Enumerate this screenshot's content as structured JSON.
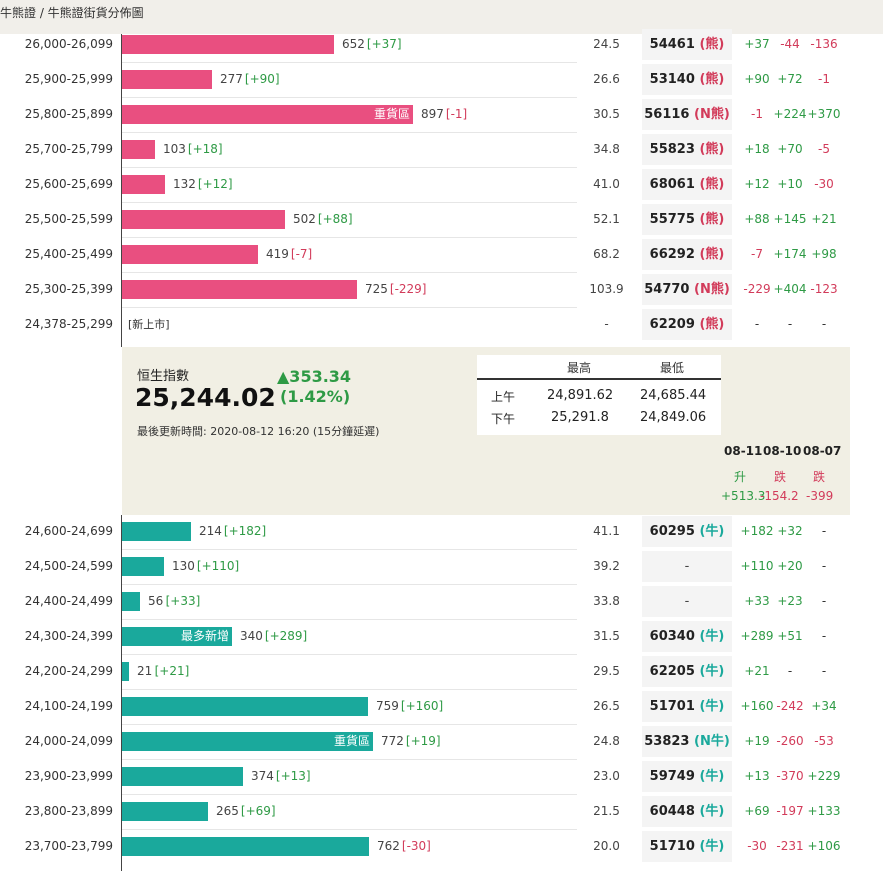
{
  "breadcrumb": "牛熊證 / 牛熊證街貨分佈圖",
  "bear_rows": [
    {
      "range": "26,000-26,099",
      "qty": "652",
      "chg": "[+37]",
      "chg_sign": "pos",
      "bar_value": 652,
      "bar_label": "",
      "ratio": "24.5",
      "code": "54461",
      "tag": "(熊)",
      "d1": "+37",
      "d1s": "pos",
      "d2": "-44",
      "d2s": "neg",
      "d3": "-136",
      "d3s": "neg"
    },
    {
      "range": "25,900-25,999",
      "qty": "277",
      "chg": "[+90]",
      "chg_sign": "pos",
      "bar_value": 277,
      "bar_label": "",
      "ratio": "26.6",
      "code": "53140",
      "tag": "(熊)",
      "d1": "+90",
      "d1s": "pos",
      "d2": "+72",
      "d2s": "pos",
      "d3": "-1",
      "d3s": "neg"
    },
    {
      "range": "25,800-25,899",
      "qty": "897",
      "chg": "[-1]",
      "chg_sign": "neg",
      "bar_value": 897,
      "bar_label": "重貨區",
      "ratio": "30.5",
      "code": "56116",
      "tag": "(N熊)",
      "d1": "-1",
      "d1s": "neg",
      "d2": "+224",
      "d2s": "pos",
      "d3": "+370",
      "d3s": "pos"
    },
    {
      "range": "25,700-25,799",
      "qty": "103",
      "chg": "[+18]",
      "chg_sign": "pos",
      "bar_value": 103,
      "bar_label": "",
      "ratio": "34.8",
      "code": "55823",
      "tag": "(熊)",
      "d1": "+18",
      "d1s": "pos",
      "d2": "+70",
      "d2s": "pos",
      "d3": "-5",
      "d3s": "neg"
    },
    {
      "range": "25,600-25,699",
      "qty": "132",
      "chg": "[+12]",
      "chg_sign": "pos",
      "bar_value": 132,
      "bar_label": "",
      "ratio": "41.0",
      "code": "68061",
      "tag": "(熊)",
      "d1": "+12",
      "d1s": "pos",
      "d2": "+10",
      "d2s": "pos",
      "d3": "-30",
      "d3s": "neg"
    },
    {
      "range": "25,500-25,599",
      "qty": "502",
      "chg": "[+88]",
      "chg_sign": "pos",
      "bar_value": 502,
      "bar_label": "",
      "ratio": "52.1",
      "code": "55775",
      "tag": "(熊)",
      "d1": "+88",
      "d1s": "pos",
      "d2": "+145",
      "d2s": "pos",
      "d3": "+21",
      "d3s": "pos"
    },
    {
      "range": "25,400-25,499",
      "qty": "419",
      "chg": "[-7]",
      "chg_sign": "neg",
      "bar_value": 419,
      "bar_label": "",
      "ratio": "68.2",
      "code": "66292",
      "tag": "(熊)",
      "d1": "-7",
      "d1s": "neg",
      "d2": "+174",
      "d2s": "pos",
      "d3": "+98",
      "d3s": "pos"
    },
    {
      "range": "25,300-25,399",
      "qty": "725",
      "chg": "[-229]",
      "chg_sign": "neg",
      "bar_value": 725,
      "bar_label": "",
      "ratio": "103.9",
      "code": "54770",
      "tag": "(N熊)",
      "d1": "-229",
      "d1s": "neg",
      "d2": "+404",
      "d2s": "pos",
      "d3": "-123",
      "d3s": "neg"
    },
    {
      "range": "24,378-25,299",
      "qty": "",
      "chg": "",
      "chg_sign": "",
      "bar_value": 0,
      "bar_label": "",
      "new_tag": "[新上市]",
      "ratio": "-",
      "code": "62209",
      "tag": "(熊)",
      "d1": "-",
      "d1s": "none",
      "d2": "-",
      "d2s": "none",
      "d3": "-",
      "d3s": "none"
    }
  ],
  "index_panel": {
    "name": "恒生指數",
    "value": "25,244.02",
    "change": "▲353.34",
    "change_pct": "(1.42%)",
    "update_time": "最後更新時間: 2020-08-12 16:20 (15分鐘延遲)",
    "hilo": {
      "high_header": "最高",
      "low_header": "最低",
      "am_label": "上午",
      "pm_label": "下午",
      "am_high": "24,891.62",
      "am_low": "24,685.44",
      "pm_high": "25,291.8",
      "pm_low": "24,849.06"
    },
    "daily": [
      {
        "date": "08-11",
        "dir": "升",
        "amt": "+513.3",
        "sign": "pos"
      },
      {
        "date": "08-10",
        "dir": "跌",
        "amt": "-154.2",
        "sign": "neg"
      },
      {
        "date": "08-07",
        "dir": "跌",
        "amt": "-399",
        "sign": "neg"
      }
    ]
  },
  "bull_rows": [
    {
      "range": "24,600-24,699",
      "qty": "214",
      "chg": "[+182]",
      "chg_sign": "pos",
      "bar_value": 214,
      "bar_label": "",
      "ratio": "41.1",
      "code": "60295",
      "tag": "(牛)",
      "d1": "+182",
      "d1s": "pos",
      "d2": "+32",
      "d2s": "pos",
      "d3": "-",
      "d3s": "none"
    },
    {
      "range": "24,500-24,599",
      "qty": "130",
      "chg": "[+110]",
      "chg_sign": "pos",
      "bar_value": 130,
      "bar_label": "",
      "ratio": "39.2",
      "code": "-",
      "tag": "",
      "d1": "+110",
      "d1s": "pos",
      "d2": "+20",
      "d2s": "pos",
      "d3": "-",
      "d3s": "none"
    },
    {
      "range": "24,400-24,499",
      "qty": "56",
      "chg": "[+33]",
      "chg_sign": "pos",
      "bar_value": 56,
      "bar_label": "",
      "ratio": "33.8",
      "code": "-",
      "tag": "",
      "d1": "+33",
      "d1s": "pos",
      "d2": "+23",
      "d2s": "pos",
      "d3": "-",
      "d3s": "none"
    },
    {
      "range": "24,300-24,399",
      "qty": "340",
      "chg": "[+289]",
      "chg_sign": "pos",
      "bar_value": 340,
      "bar_label": "最多新增",
      "ratio": "31.5",
      "code": "60340",
      "tag": "(牛)",
      "d1": "+289",
      "d1s": "pos",
      "d2": "+51",
      "d2s": "pos",
      "d3": "-",
      "d3s": "none"
    },
    {
      "range": "24,200-24,299",
      "qty": "21",
      "chg": "[+21]",
      "chg_sign": "pos",
      "bar_value": 21,
      "bar_label": "",
      "ratio": "29.5",
      "code": "62205",
      "tag": "(牛)",
      "d1": "+21",
      "d1s": "pos",
      "d2": "-",
      "d2s": "none",
      "d3": "-",
      "d3s": "none"
    },
    {
      "range": "24,100-24,199",
      "qty": "759",
      "chg": "[+160]",
      "chg_sign": "pos",
      "bar_value": 759,
      "bar_label": "",
      "ratio": "26.5",
      "code": "51701",
      "tag": "(牛)",
      "d1": "+160",
      "d1s": "pos",
      "d2": "-242",
      "d2s": "neg",
      "d3": "+34",
      "d3s": "pos"
    },
    {
      "range": "24,000-24,099",
      "qty": "772",
      "chg": "[+19]",
      "chg_sign": "pos",
      "bar_value": 772,
      "bar_label": "重貨區",
      "ratio": "24.8",
      "code": "53823",
      "tag": "(N牛)",
      "d1": "+19",
      "d1s": "pos",
      "d2": "-260",
      "d2s": "neg",
      "d3": "-53",
      "d3s": "neg"
    },
    {
      "range": "23,900-23,999",
      "qty": "374",
      "chg": "[+13]",
      "chg_sign": "pos",
      "bar_value": 374,
      "bar_label": "",
      "ratio": "23.0",
      "code": "59749",
      "tag": "(牛)",
      "d1": "+13",
      "d1s": "pos",
      "d2": "-370",
      "d2s": "neg",
      "d3": "+229",
      "d3s": "pos"
    },
    {
      "range": "23,800-23,899",
      "qty": "265",
      "chg": "[+69]",
      "chg_sign": "pos",
      "bar_value": 265,
      "bar_label": "",
      "ratio": "21.5",
      "code": "60448",
      "tag": "(牛)",
      "d1": "+69",
      "d1s": "pos",
      "d2": "-197",
      "d2s": "neg",
      "d3": "+133",
      "d3s": "pos"
    },
    {
      "range": "23,700-23,799",
      "qty": "762",
      "chg": "[-30]",
      "chg_sign": "neg",
      "bar_value": 762,
      "bar_label": "",
      "ratio": "20.0",
      "code": "51710",
      "tag": "(牛)",
      "d1": "-30",
      "d1s": "neg",
      "d2": "-231",
      "d2s": "neg",
      "d3": "+106",
      "d3s": "pos"
    }
  ]
}
